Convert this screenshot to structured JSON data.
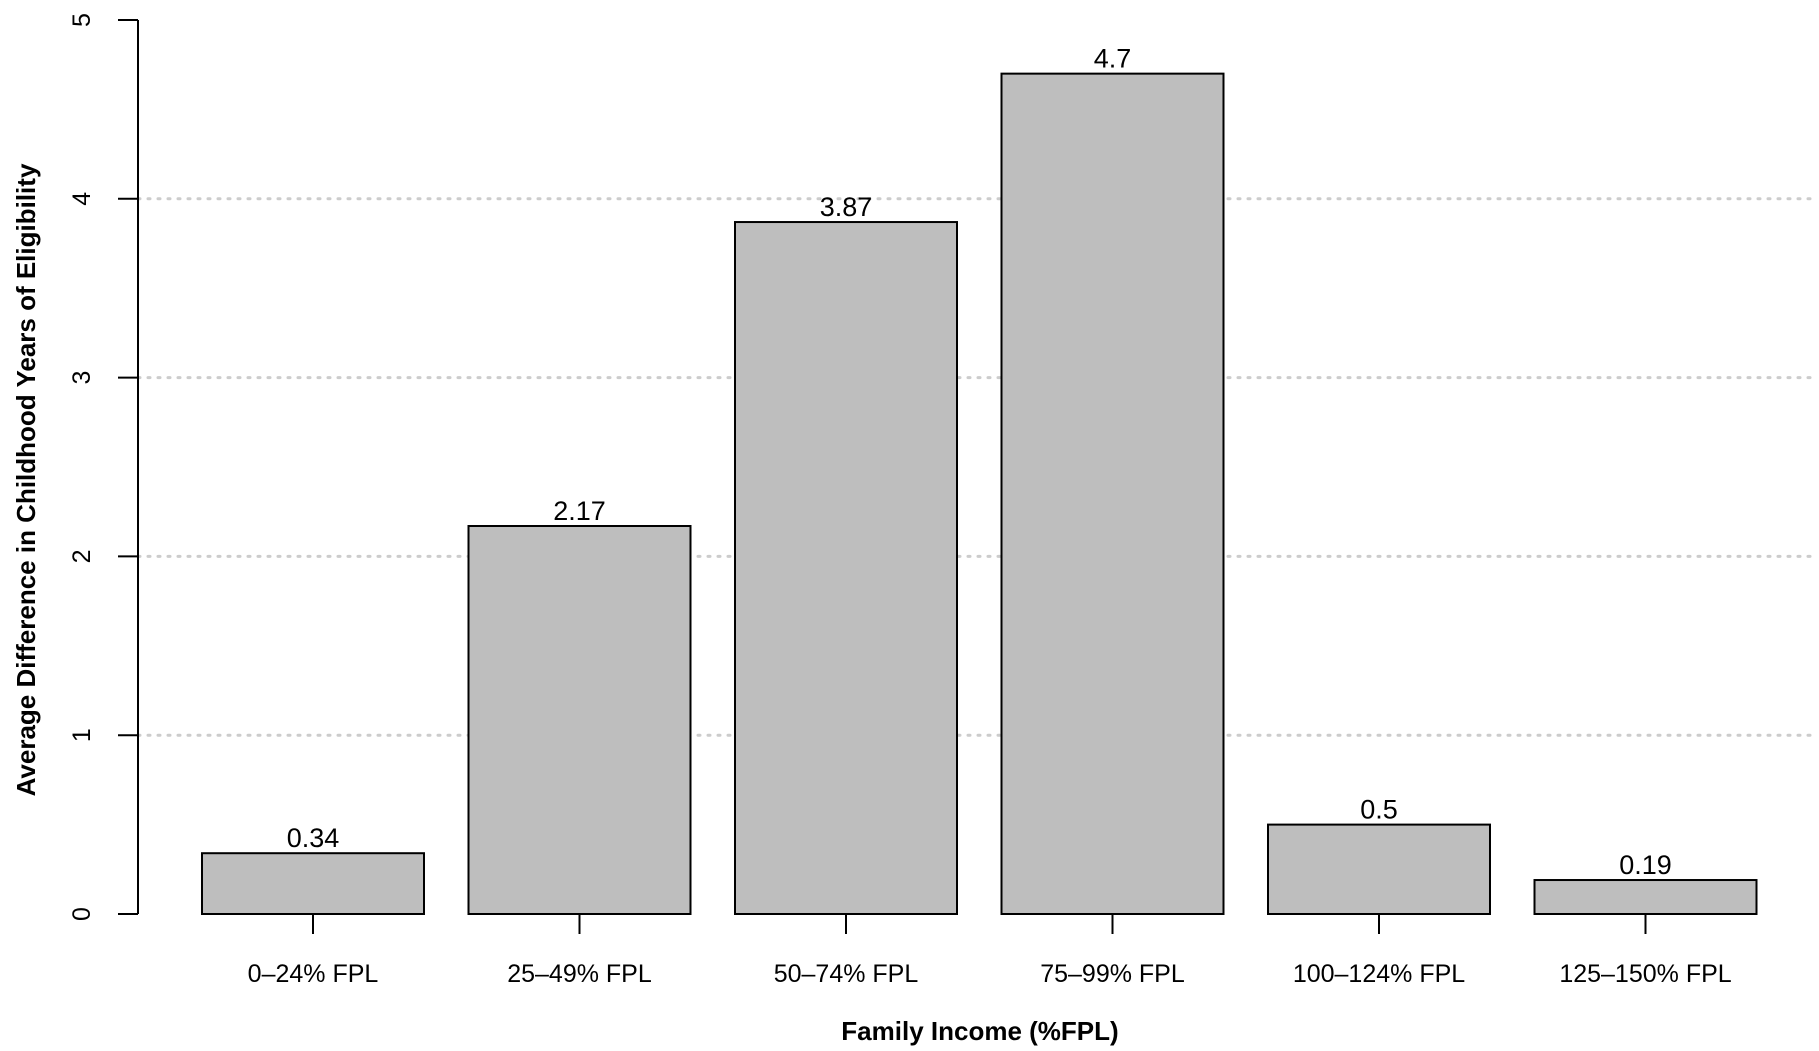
{
  "chart_data": {
    "type": "bar",
    "title": "",
    "xlabel": "Family Income (%FPL)",
    "ylabel": "Average Difference in Childhood Years of Eligibility",
    "categories": [
      "0–24% FPL",
      "25–49% FPL",
      "50–74% FPL",
      "75–99% FPL",
      "100–124% FPL",
      "125–150% FPL"
    ],
    "values": [
      0.34,
      2.17,
      3.87,
      4.7,
      0.5,
      0.19
    ],
    "value_labels": [
      "0.34",
      "2.17",
      "3.87",
      "4.7",
      "0.5",
      "0.19"
    ],
    "ylim": [
      0,
      5
    ],
    "yticks": [
      0,
      1,
      2,
      3,
      4,
      5
    ],
    "grid": "horizontal dotted at 1, 2, 3, 4",
    "legend": "none",
    "bar_color": "#bebebe",
    "bar_edge_color": "#000000",
    "grid_color": "#cccccc"
  }
}
